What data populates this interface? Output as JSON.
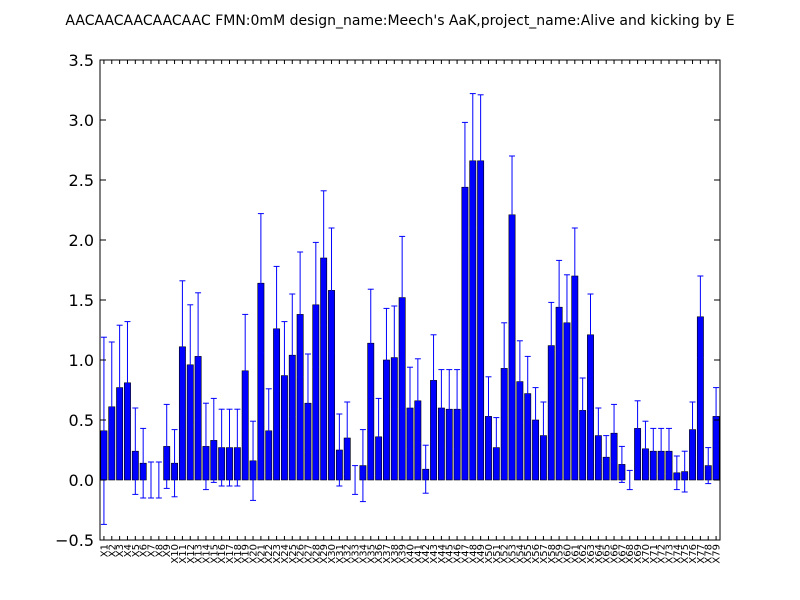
{
  "chart_data": {
    "type": "bar",
    "title": "AACAACAACAACAAC  FMN:0mM  design_name:Meech's AaK,project_name:Alive and kicking by E",
    "xlabel": "",
    "ylabel": "",
    "ylim": [
      -0.5,
      3.5
    ],
    "yticks": [
      -0.5,
      0.0,
      0.5,
      1.0,
      1.5,
      2.0,
      2.5,
      3.0,
      3.5
    ],
    "ytick_labels": [
      "−0.5",
      "0.0",
      "0.5",
      "1.0",
      "1.5",
      "2.0",
      "2.5",
      "3.0",
      "3.5"
    ],
    "grid": false,
    "bar_color": "#0000ff",
    "error_color": "#0000ff",
    "categories": [
      "X1",
      "X2",
      "X3",
      "X4",
      "X5",
      "X6",
      "X7",
      "X8",
      "X9",
      "X10",
      "X11",
      "X12",
      "X13",
      "X14",
      "X15",
      "X16",
      "X17",
      "X18",
      "X19",
      "X20",
      "X21",
      "X22",
      "X23",
      "X24",
      "X25",
      "X26",
      "X27",
      "X28",
      "X29",
      "X30",
      "X31",
      "X32",
      "X33",
      "X34",
      "X35",
      "X36",
      "X37",
      "X38",
      "X39",
      "X40",
      "X41",
      "X42",
      "X43",
      "X44",
      "X45",
      "X46",
      "X47",
      "X48",
      "X49",
      "X50",
      "X51",
      "X52",
      "X53",
      "X54",
      "X55",
      "X56",
      "X57",
      "X58",
      "X59",
      "X60",
      "X61",
      "X62",
      "X63",
      "X64",
      "X65",
      "X66",
      "X67",
      "X68",
      "X69",
      "X70",
      "X71",
      "X72",
      "X73",
      "X74",
      "X75",
      "X76",
      "X77",
      "X78",
      "X79"
    ],
    "values": [
      0.41,
      0.61,
      0.77,
      0.81,
      0.24,
      0.14,
      0.0,
      0.0,
      0.28,
      0.14,
      1.11,
      0.96,
      1.03,
      0.28,
      0.33,
      0.27,
      0.27,
      0.27,
      0.91,
      0.16,
      1.64,
      0.41,
      1.26,
      0.87,
      1.04,
      1.38,
      0.64,
      1.46,
      1.85,
      1.58,
      0.25,
      0.35,
      0.0,
      0.12,
      1.14,
      0.36,
      1.0,
      1.02,
      1.52,
      0.6,
      0.66,
      0.09,
      0.83,
      0.6,
      0.59,
      0.59,
      2.44,
      2.66,
      2.66,
      0.53,
      0.27,
      0.93,
      2.21,
      0.82,
      0.72,
      0.5,
      0.37,
      1.12,
      1.44,
      1.31,
      1.7,
      0.58,
      1.21,
      0.37,
      0.19,
      0.39,
      0.13,
      0.0,
      0.43,
      0.26,
      0.24,
      0.24,
      0.24,
      0.06,
      0.07,
      0.42,
      1.36,
      0.12,
      0.53
    ],
    "errors": [
      0.78,
      0.54,
      0.52,
      0.51,
      0.36,
      0.29,
      0.15,
      0.15,
      0.35,
      0.28,
      0.55,
      0.5,
      0.53,
      0.36,
      0.35,
      0.32,
      0.32,
      0.32,
      0.47,
      0.33,
      0.58,
      0.35,
      0.52,
      0.45,
      0.51,
      0.52,
      0.41,
      0.52,
      0.56,
      0.52,
      0.3,
      0.3,
      0.12,
      0.3,
      0.45,
      0.32,
      0.43,
      0.43,
      0.51,
      0.34,
      0.35,
      0.2,
      0.38,
      0.32,
      0.33,
      0.33,
      0.54,
      0.56,
      0.55,
      0.33,
      0.25,
      0.38,
      0.49,
      0.34,
      0.31,
      0.27,
      0.28,
      0.36,
      0.39,
      0.4,
      0.4,
      0.27,
      0.34,
      0.23,
      0.18,
      0.24,
      0.15,
      0.08,
      0.23,
      0.23,
      0.19,
      0.19,
      0.19,
      0.14,
      0.17,
      0.23,
      0.34,
      0.15,
      0.24
    ]
  }
}
